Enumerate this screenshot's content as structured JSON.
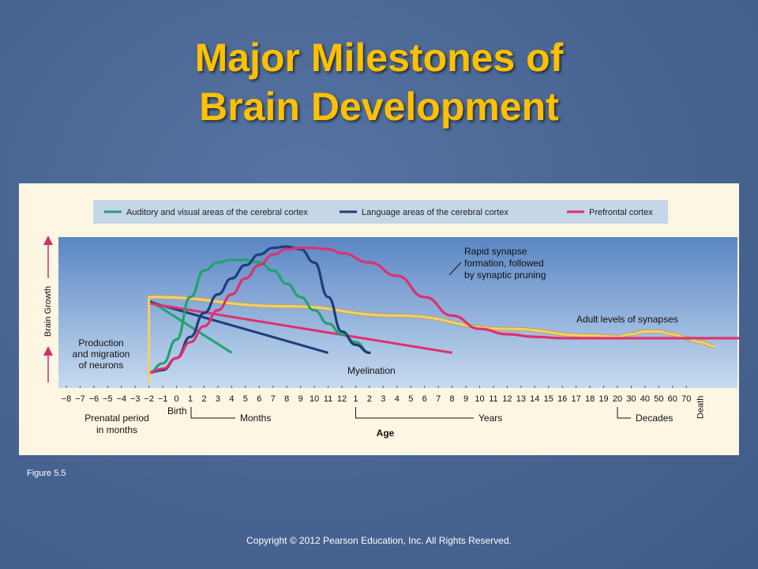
{
  "slide": {
    "title_line1": "Major Milestones of",
    "title_line2": "Brain Development",
    "figure_label": "Figure 5.5",
    "copyright": "Copyright © 2012 Pearson Education, Inc. All Rights Reserved."
  },
  "chart_data": {
    "type": "line",
    "xlabel": "Age",
    "ylabel": "Brain Growth",
    "grid": false,
    "legend_placement": "top",
    "x_ticks": [
      "−8",
      "−7",
      "−6",
      "−5",
      "−4",
      "−3",
      "−2",
      "−1",
      "0",
      "1",
      "2",
      "3",
      "4",
      "5",
      "6",
      "7",
      "8",
      "9",
      "10",
      "11",
      "12",
      "1",
      "2",
      "3",
      "4",
      "5",
      "6",
      "7",
      "8",
      "9",
      "10",
      "11",
      "12",
      "13",
      "14",
      "15",
      "16",
      "17",
      "18",
      "19",
      "20",
      "30",
      "40",
      "50",
      "60",
      "70",
      "Death"
    ],
    "x_axis_annotations": {
      "prenatal": "Prenatal period in months",
      "birth": "Birth",
      "months": "Months",
      "years": "Years",
      "decades": "Decades",
      "death": "Death"
    },
    "annotations": {
      "production": [
        "Production",
        "and migration",
        "of neurons"
      ],
      "synapse": [
        "Rapid synapse",
        "formation, followed",
        "by synaptic pruning"
      ],
      "adult": "Adult levels of synapses",
      "myelination": "Myelination"
    },
    "series": [
      {
        "name": "Auditory and visual areas of the cerebral cortex",
        "color": "#1fa370",
        "points": [
          [
            -2,
            0.05
          ],
          [
            -1,
            0.12
          ],
          [
            0,
            0.3
          ],
          [
            1,
            0.62
          ],
          [
            2,
            0.82
          ],
          [
            3,
            0.88
          ],
          [
            4,
            0.9
          ],
          [
            5,
            0.9
          ],
          [
            6,
            0.88
          ],
          [
            7,
            0.82
          ],
          [
            8,
            0.72
          ],
          [
            9,
            0.62
          ],
          [
            10,
            0.52
          ],
          [
            11,
            0.42
          ],
          [
            12,
            0.34
          ],
          [
            13,
            0.28
          ],
          [
            14,
            0.2
          ]
        ]
      },
      {
        "name": "Language areas of the cerebral cortex",
        "color": "#1f3d7a",
        "points": [
          [
            -2,
            0.05
          ],
          [
            -1,
            0.07
          ],
          [
            0,
            0.16
          ],
          [
            1,
            0.32
          ],
          [
            2,
            0.5
          ],
          [
            3,
            0.64
          ],
          [
            4,
            0.76
          ],
          [
            5,
            0.86
          ],
          [
            6,
            0.94
          ],
          [
            7,
            0.99
          ],
          [
            8,
            1.0
          ],
          [
            9,
            0.98
          ],
          [
            10,
            0.88
          ],
          [
            11,
            0.62
          ],
          [
            12,
            0.36
          ],
          [
            13,
            0.26
          ],
          [
            14,
            0.2
          ]
        ]
      },
      {
        "name": "Prefrontal cortex",
        "color": "#e0306e",
        "points": [
          [
            -2,
            0.05
          ],
          [
            -1,
            0.08
          ],
          [
            0,
            0.16
          ],
          [
            1,
            0.28
          ],
          [
            2,
            0.4
          ],
          [
            3,
            0.52
          ],
          [
            4,
            0.64
          ],
          [
            5,
            0.76
          ],
          [
            6,
            0.86
          ],
          [
            7,
            0.94
          ],
          [
            8,
            0.98
          ],
          [
            9,
            0.99
          ],
          [
            10,
            0.99
          ],
          [
            11,
            0.98
          ],
          [
            12,
            0.95
          ],
          [
            14,
            0.88
          ],
          [
            16,
            0.78
          ],
          [
            18,
            0.62
          ],
          [
            20,
            0.48
          ],
          [
            22,
            0.38
          ],
          [
            24,
            0.34
          ],
          [
            26,
            0.32
          ],
          [
            28,
            0.31
          ],
          [
            30,
            0.31
          ],
          [
            32,
            0.31
          ],
          [
            36,
            0.31
          ],
          [
            40,
            0.31
          ],
          [
            45,
            0.31
          ]
        ]
      },
      {
        "name": "Myelination",
        "color": "#f2d06b",
        "points": [
          [
            -2,
            0.62
          ],
          [
            8,
            0.55
          ],
          [
            16,
            0.48
          ],
          [
            24,
            0.38
          ],
          [
            30,
            0.33
          ],
          [
            32,
            0.32
          ],
          [
            33,
            0.34
          ],
          [
            34,
            0.36
          ],
          [
            35,
            0.36
          ],
          [
            36,
            0.34
          ],
          [
            37,
            0.31
          ],
          [
            38,
            0.28
          ],
          [
            39,
            0.25
          ]
        ]
      }
    ],
    "neuron_production_lines": [
      {
        "color": "#1fa370",
        "end_x": 4,
        "end_y": 0.2
      },
      {
        "color": "#1f3d7a",
        "end_x": 11,
        "end_y": 0.2
      },
      {
        "color": "#e0306e",
        "end_x": 20,
        "end_y": 0.2
      }
    ]
  }
}
